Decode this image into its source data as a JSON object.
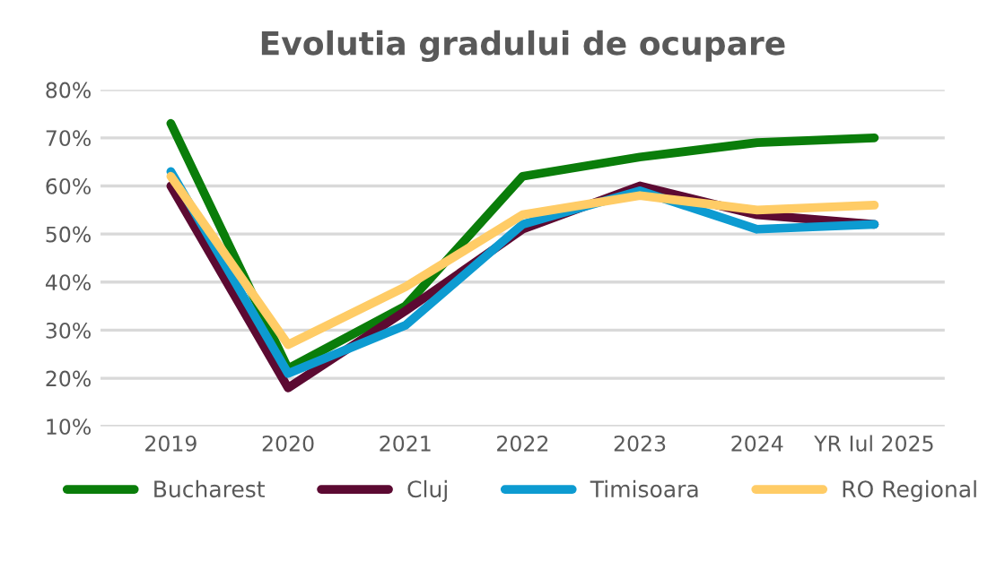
{
  "chart_data": {
    "type": "line",
    "title": "Evolutia gradului de ocupare",
    "categories": [
      "2019",
      "2020",
      "2021",
      "2022",
      "2023",
      "2024",
      "YR Iul 2025"
    ],
    "series": [
      {
        "name": "Bucharest",
        "color": "#0a7d0a",
        "values": [
          73,
          22,
          35,
          62,
          66,
          69,
          70
        ]
      },
      {
        "name": "Cluj",
        "color": "#5c0a32",
        "values": [
          60,
          18,
          34,
          51,
          60,
          54,
          52
        ]
      },
      {
        "name": "Timisoara",
        "color": "#0d9bd1",
        "values": [
          63,
          21,
          31,
          52,
          59,
          51,
          52
        ]
      },
      {
        "name": "RO Regional",
        "color": "#ffcc66",
        "values": [
          62,
          27,
          39,
          54,
          58,
          55,
          56
        ]
      }
    ],
    "ylim": [
      10,
      80
    ],
    "yticks": [
      {
        "value": 10,
        "label": "10%"
      },
      {
        "value": 20,
        "label": "20%"
      },
      {
        "value": 30,
        "label": "30%"
      },
      {
        "value": 40,
        "label": "40%"
      },
      {
        "value": 50,
        "label": "50%"
      },
      {
        "value": 60,
        "label": "60%"
      },
      {
        "value": 70,
        "label": "70%"
      },
      {
        "value": 80,
        "label": "80%"
      }
    ],
    "grid": "y",
    "legend": "bottom"
  }
}
